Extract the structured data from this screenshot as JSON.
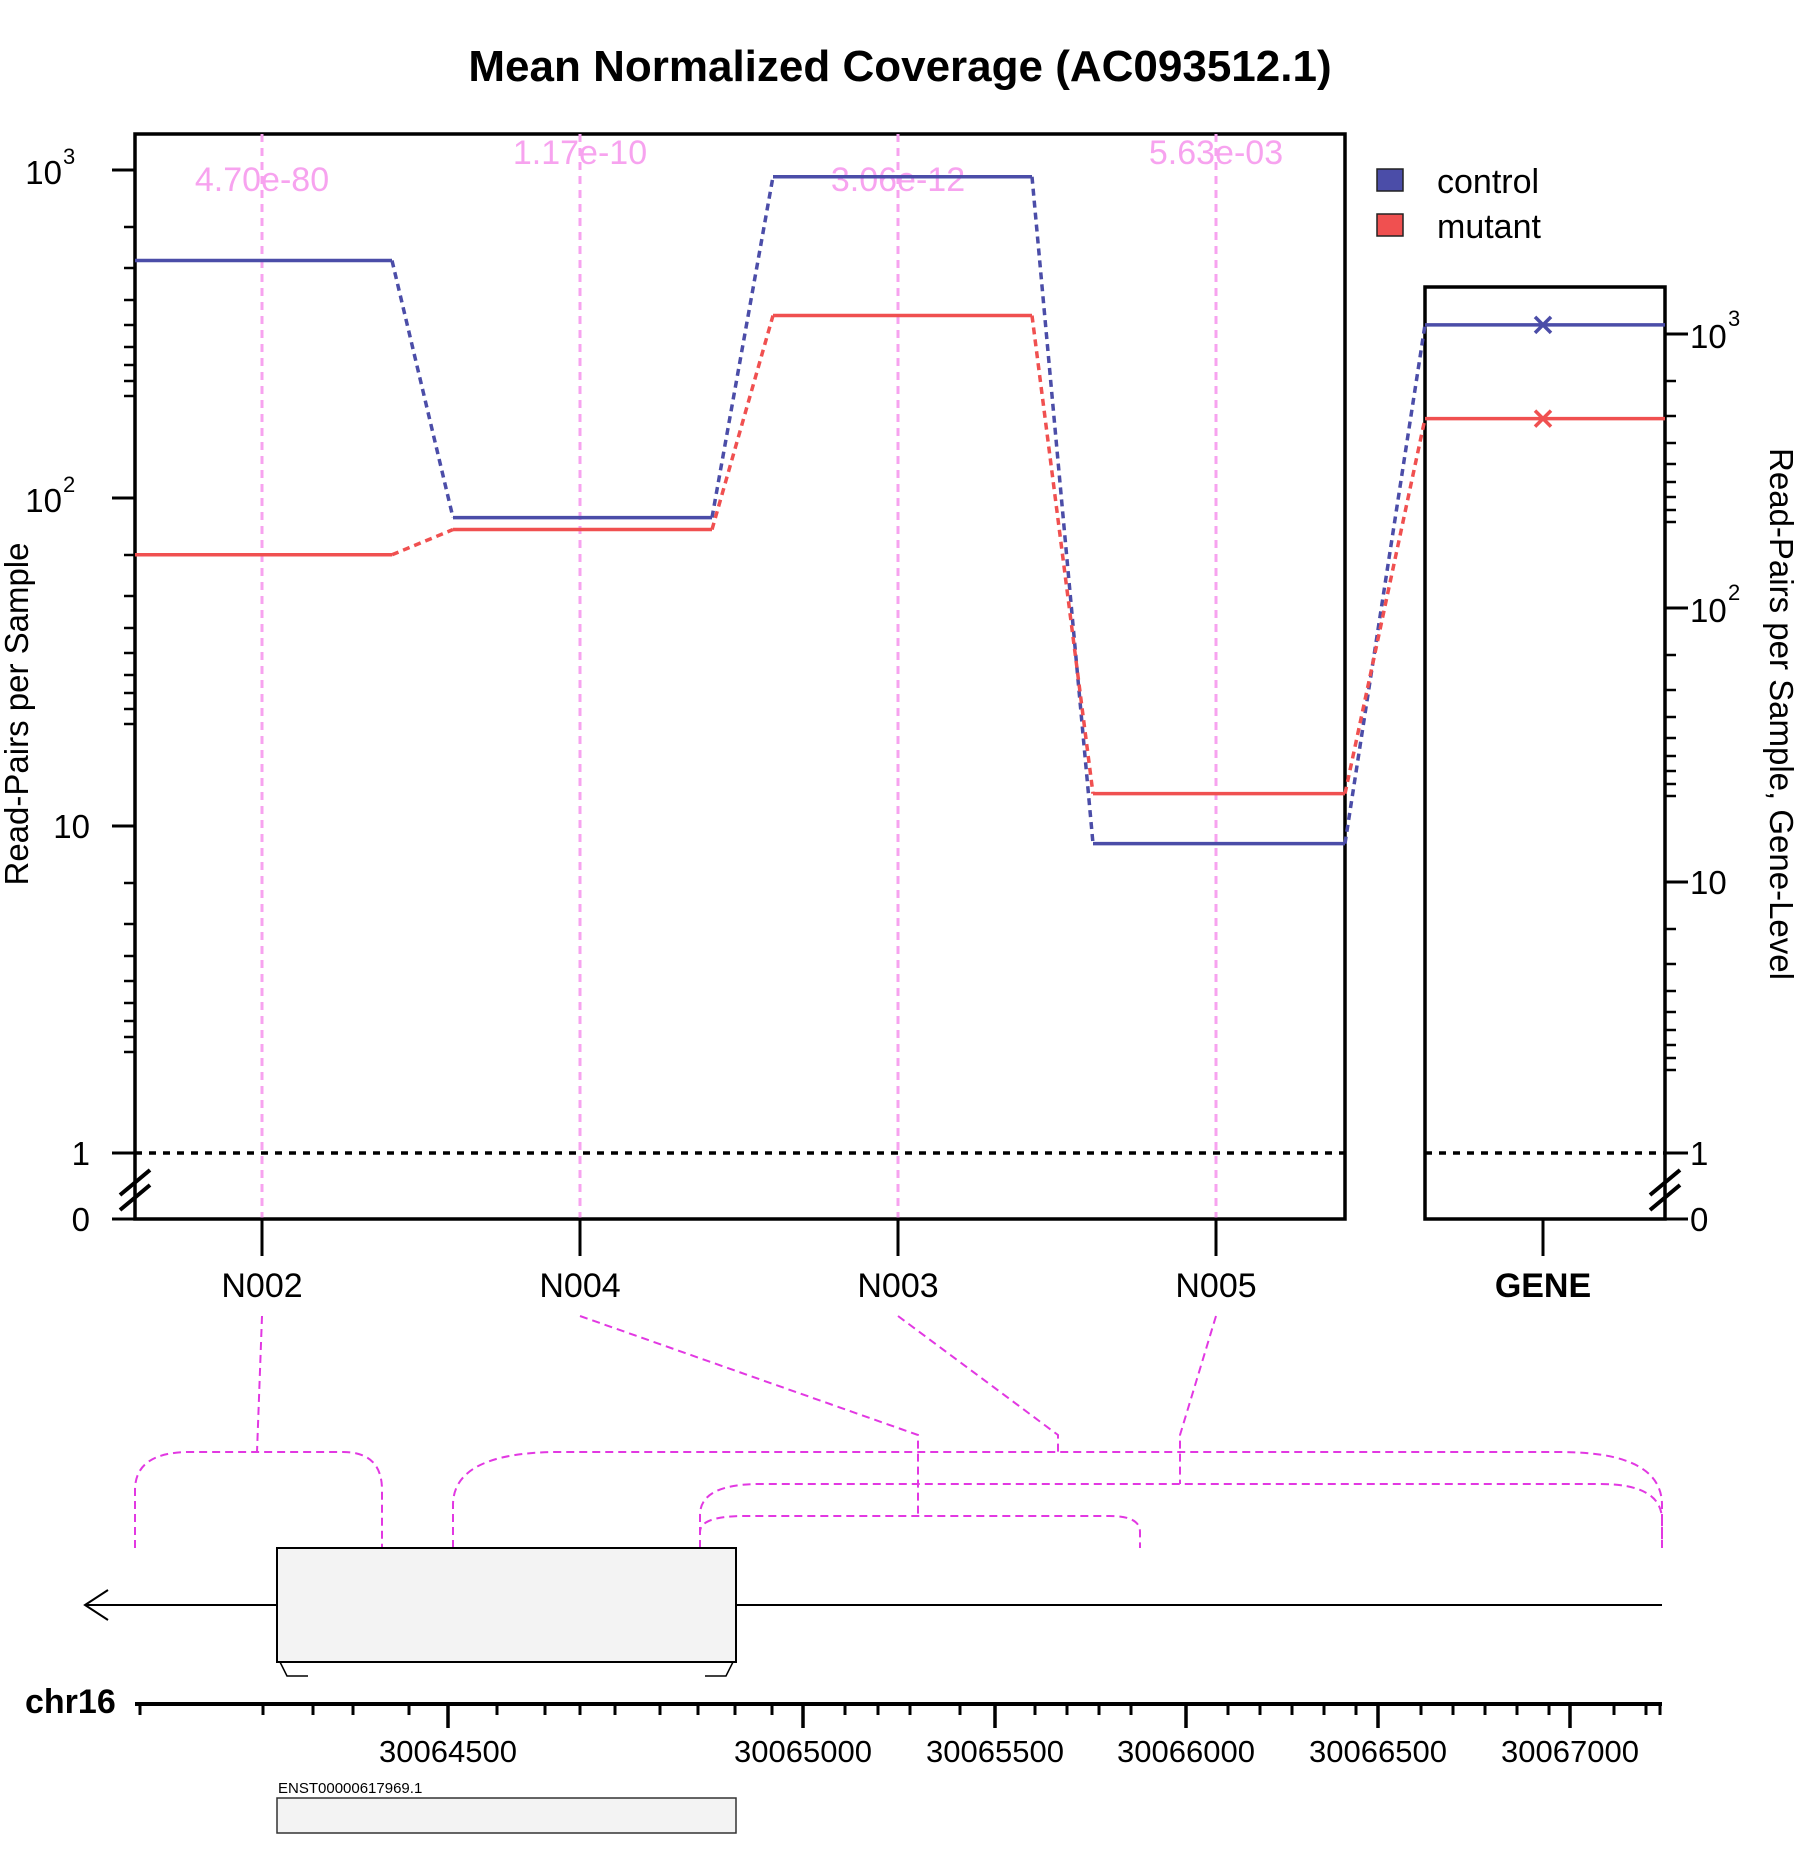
{
  "chart_data": {
    "type": "line",
    "title": "Mean Normalized Coverage (AC093512.1)",
    "ylabel": "Read-Pairs per Sample",
    "ylabel_right": "Read-Pairs per Sample, Gene-Level",
    "yscale": "log",
    "y_ticks_left": [
      "0",
      "1",
      "10",
      "10^2",
      "10^3"
    ],
    "y_ticks_right": [
      "0",
      "1",
      "10",
      "10^2",
      "10^3"
    ],
    "categories": [
      "N002",
      "N004",
      "N003",
      "N005"
    ],
    "gene_category": "GENE",
    "pvalues": [
      "4.70e-80",
      "1.17e-10",
      "3.06e-12",
      "5.63e-03"
    ],
    "series": [
      {
        "name": "control",
        "color": "#4b4da8",
        "values": [
          530,
          87,
          955,
          8.8
        ],
        "gene_value": 1080
      },
      {
        "name": "mutant",
        "color": "#f05050",
        "values": [
          67,
          80,
          360,
          12.5
        ],
        "gene_value": 490
      }
    ],
    "reference_line": 1,
    "legend_position": "top-right"
  },
  "track": {
    "chromosome": "chr16",
    "coord_ticks": [
      "30064500",
      "30065000",
      "30065500",
      "30066000",
      "30066500",
      "30067000"
    ],
    "transcript": "ENST00000617969.1"
  }
}
